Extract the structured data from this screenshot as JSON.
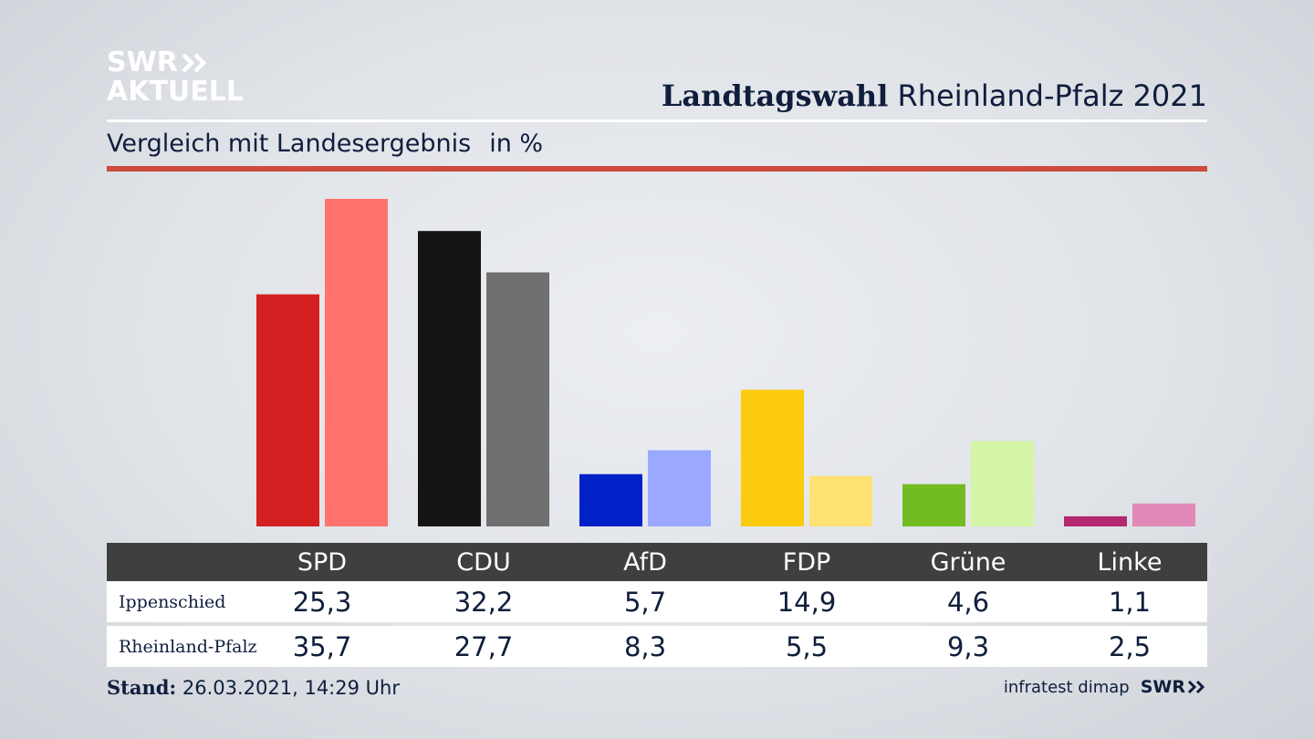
{
  "brand": {
    "logo_line1": "SWR",
    "logo_line2": "AKTUELL",
    "footer_logo": "SWR"
  },
  "header": {
    "title_bold": "Landtagswahl",
    "title_regular": "Rheinland-Pfalz 2021"
  },
  "subtitle": {
    "text": "Vergleich mit Landesergebnis",
    "unit": "in %"
  },
  "footer": {
    "stand_label": "Stand:",
    "stand_value": "26.03.2021, 14:29 Uhr",
    "source": "infratest dimap"
  },
  "colors": {
    "accent_red": "#cc4b3c",
    "table_header": "#3f3f3f"
  },
  "chart_data": {
    "type": "bar",
    "categories": [
      "SPD",
      "CDU",
      "AfD",
      "FDP",
      "Grüne",
      "Linke"
    ],
    "series": [
      {
        "name": "Ippenschied",
        "values": [
          25.3,
          32.2,
          5.7,
          14.9,
          4.6,
          1.1
        ],
        "labels": [
          "25,3",
          "32,2",
          "5,7",
          "14,9",
          "4,6",
          "1,1"
        ],
        "colors": [
          "#d42020",
          "#141414",
          "#0021c8",
          "#fccb0d",
          "#73bb23",
          "#b3286f"
        ]
      },
      {
        "name": "Rheinland-Pfalz",
        "values": [
          35.7,
          27.7,
          8.3,
          5.5,
          9.3,
          2.5
        ],
        "labels": [
          "35,7",
          "27,7",
          "8,3",
          "5,5",
          "9,3",
          "2,5"
        ],
        "colors": [
          "#ff726d",
          "#717070",
          "#9aa9ff",
          "#fde273",
          "#d4f5a8",
          "#e289b8"
        ]
      }
    ],
    "ylim": [
      0,
      36
    ],
    "grid": false,
    "legend": "table below chart"
  }
}
